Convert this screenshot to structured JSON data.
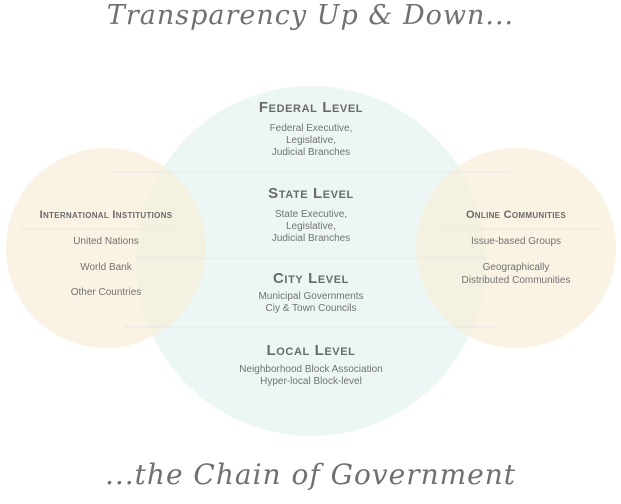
{
  "title": "Transparency Up & Down...",
  "footer": "...the Chain of Government",
  "colors": {
    "center_circle": "#ddeeed",
    "side_circles": "#f8efd9",
    "divider_lines": "#e8ecea",
    "heading_text": "#6a6a6a",
    "body_text": "#727272"
  },
  "center": {
    "levels": [
      {
        "heading": "Federal Level",
        "lines": [
          "Federal Executive,",
          "Legislative,",
          "Judicial Branches"
        ]
      },
      {
        "heading": "State Level",
        "lines": [
          "State Executive,",
          "Legislative,",
          "Judicial Branches"
        ]
      },
      {
        "heading": "City Level",
        "lines": [
          "Municipal Governments",
          "Ciy & Town Councils"
        ]
      },
      {
        "heading": "Local Level",
        "lines": [
          "Neighborhood Block Association",
          "Hyper-local Block-level"
        ]
      }
    ]
  },
  "left": {
    "heading": "International Institutions",
    "items": [
      "United Nations",
      "World Bank",
      "Other Countries"
    ]
  },
  "right": {
    "heading": "Online Communities",
    "items": [
      [
        "Issue-based Groups"
      ],
      [
        "Geographically",
        "Distributed Communities"
      ]
    ]
  }
}
